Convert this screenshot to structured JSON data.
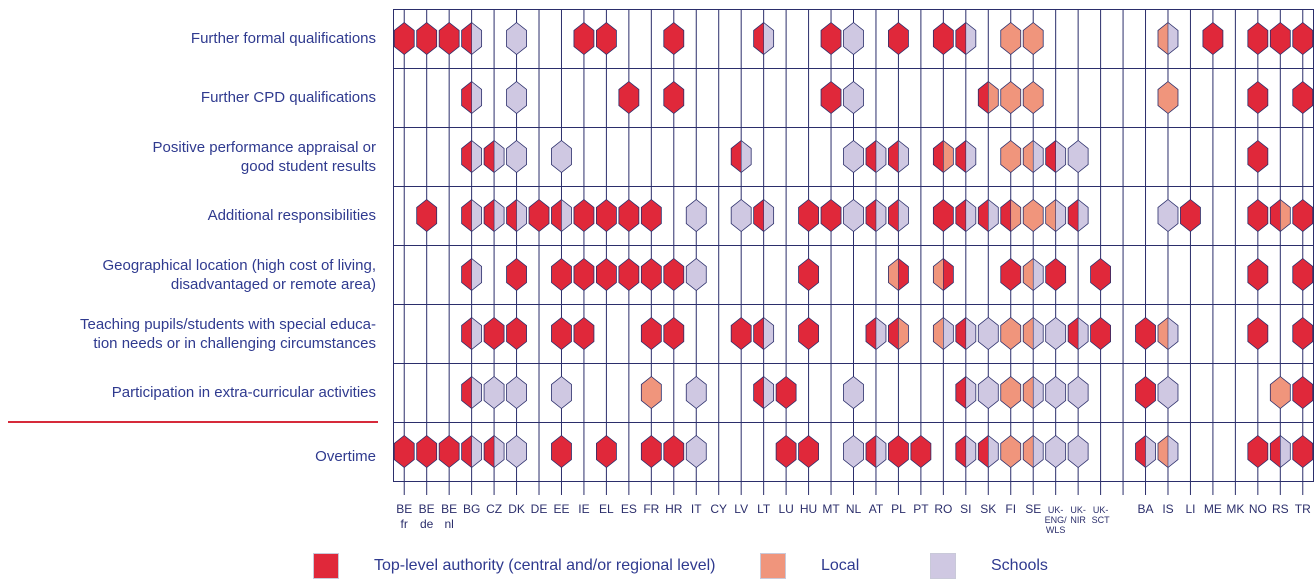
{
  "chart_data": {
    "type": "table",
    "title": "",
    "colors": {
      "top": "#e0283a",
      "local": "#f0957c",
      "school": "#cfc8e2",
      "stroke": "#2b2e6b",
      "separator": "#d62a3a"
    },
    "legend": [
      {
        "key": "top",
        "label": "Top-level authority (central and/or regional level)"
      },
      {
        "key": "local",
        "label": "Local"
      },
      {
        "key": "school",
        "label": "Schools"
      }
    ],
    "columns": [
      {
        "label": "BE\nfr"
      },
      {
        "label": "BE\nde"
      },
      {
        "label": "BE\nnl"
      },
      {
        "label": "BG"
      },
      {
        "label": "CZ"
      },
      {
        "label": "DK"
      },
      {
        "label": "DE"
      },
      {
        "label": "EE"
      },
      {
        "label": "IE"
      },
      {
        "label": "EL"
      },
      {
        "label": "ES"
      },
      {
        "label": "FR"
      },
      {
        "label": "HR"
      },
      {
        "label": "IT"
      },
      {
        "label": "CY"
      },
      {
        "label": "LV"
      },
      {
        "label": "LT"
      },
      {
        "label": "LU"
      },
      {
        "label": "HU"
      },
      {
        "label": "MT"
      },
      {
        "label": "NL"
      },
      {
        "label": "AT"
      },
      {
        "label": "PL"
      },
      {
        "label": "PT"
      },
      {
        "label": "RO"
      },
      {
        "label": "SI"
      },
      {
        "label": "SK"
      },
      {
        "label": "FI"
      },
      {
        "label": "SE"
      },
      {
        "label": "UK-\nENG/\nWLS",
        "small": true
      },
      {
        "label": "UK-\nNIR",
        "small": true
      },
      {
        "label": "UK-\nSCT",
        "small": true
      },
      {
        "label": ""
      },
      {
        "label": "BA"
      },
      {
        "label": "IS"
      },
      {
        "label": "LI"
      },
      {
        "label": "ME"
      },
      {
        "label": "MK"
      },
      {
        "label": "NO"
      },
      {
        "label": "RS"
      },
      {
        "label": "TR"
      }
    ],
    "rows": [
      {
        "label": "Further formal qualifications",
        "cells": [
          "T",
          "T",
          "T",
          "TS",
          "",
          "S",
          "",
          "",
          "T",
          "T",
          "",
          "",
          "T",
          "",
          "",
          "",
          "TS",
          "",
          "",
          "T",
          "S",
          "",
          "T",
          "",
          "T",
          "TS",
          "",
          "L",
          "L",
          "",
          "",
          "",
          "",
          "",
          "LS",
          "",
          "T",
          "",
          "T",
          "T",
          "T"
        ]
      },
      {
        "label": "Further CPD qualifications",
        "cells": [
          "",
          "",
          "",
          "TS",
          "",
          "S",
          "",
          "",
          "",
          "",
          "T",
          "",
          "T",
          "",
          "",
          "",
          "",
          "",
          "",
          "T",
          "S",
          "",
          "",
          "",
          "",
          "",
          "TL",
          "L",
          "L",
          "",
          "",
          "",
          "",
          "",
          "L",
          "",
          "",
          "",
          "T",
          "",
          "T"
        ]
      },
      {
        "label": "Positive performance appraisal or\ngood student results",
        "cells": [
          "",
          "",
          "",
          "TS",
          "TS",
          "S",
          "",
          "S",
          "",
          "",
          "",
          "",
          "",
          "",
          "",
          "TS",
          "",
          "",
          "",
          "",
          "S",
          "TS",
          "TS",
          "",
          "TL",
          "TS",
          "",
          "L",
          "LS",
          "TS",
          "S",
          "",
          "",
          "",
          "",
          "",
          "",
          "",
          "T",
          "",
          ""
        ]
      },
      {
        "label": "Additional responsibilities",
        "cells": [
          "",
          "T",
          "",
          "TS",
          "TS",
          "TS",
          "T",
          "TS",
          "T",
          "T",
          "T",
          "T",
          "",
          "S",
          "",
          "S",
          "TS",
          "",
          "T",
          "T",
          "S",
          "TS",
          "TS",
          "",
          "T",
          "TS",
          "TS",
          "TL",
          "L",
          "LS",
          "TS",
          "",
          "",
          "",
          "S",
          "T",
          "",
          "",
          "T",
          "TL",
          "T"
        ]
      },
      {
        "label": "Geographical location (high cost of living,\ndisadvantaged or remote area)",
        "cells": [
          "",
          "",
          "",
          "TS",
          "",
          "T",
          "",
          "T",
          "T",
          "T",
          "T",
          "T",
          "T",
          "S",
          "",
          "",
          "",
          "",
          "T",
          "",
          "",
          "",
          "LT",
          "",
          "LT",
          "",
          "",
          "T",
          "LS",
          "T",
          "",
          "T",
          "",
          "",
          "",
          "",
          "",
          "",
          "T",
          "",
          "T"
        ]
      },
      {
        "label": "Teaching pupils/students with special educa-\ntion needs or in challenging circumstances",
        "cells": [
          "",
          "",
          "",
          "TS",
          "T",
          "T",
          "",
          "T",
          "T",
          "",
          "",
          "T",
          "T",
          "",
          "",
          "T",
          "TS",
          "",
          "T",
          "",
          "",
          "TS",
          "TL",
          "",
          "LS",
          "TS",
          "S",
          "L",
          "LS",
          "S",
          "TS",
          "T",
          "",
          "T",
          "LS",
          "",
          "",
          "",
          "T",
          "",
          "T"
        ]
      },
      {
        "label": "Participation in extra-curricular activities",
        "cells": [
          "",
          "",
          "",
          "TS",
          "S",
          "S",
          "",
          "S",
          "",
          "",
          "",
          "L",
          "",
          "S",
          "",
          "",
          "TS",
          "T",
          "",
          "",
          "S",
          "",
          "",
          "",
          "",
          "TS",
          "S",
          "L",
          "LS",
          "S",
          "S",
          "",
          "",
          "T",
          "S",
          "",
          "",
          "",
          "",
          "L",
          "T"
        ]
      },
      {
        "label": "Overtime",
        "cells": [
          "T",
          "T",
          "T",
          "TS",
          "TS",
          "S",
          "",
          "T",
          "",
          "T",
          "",
          "T",
          "T",
          "S",
          "",
          "",
          "",
          "T",
          "T",
          "",
          "S",
          "TS",
          "T",
          "T",
          "",
          "TS",
          "TS",
          "L",
          "LS",
          "S",
          "S",
          "",
          "",
          "TS",
          "LS",
          "",
          "",
          "",
          "T",
          "TS",
          "T"
        ]
      }
    ]
  }
}
